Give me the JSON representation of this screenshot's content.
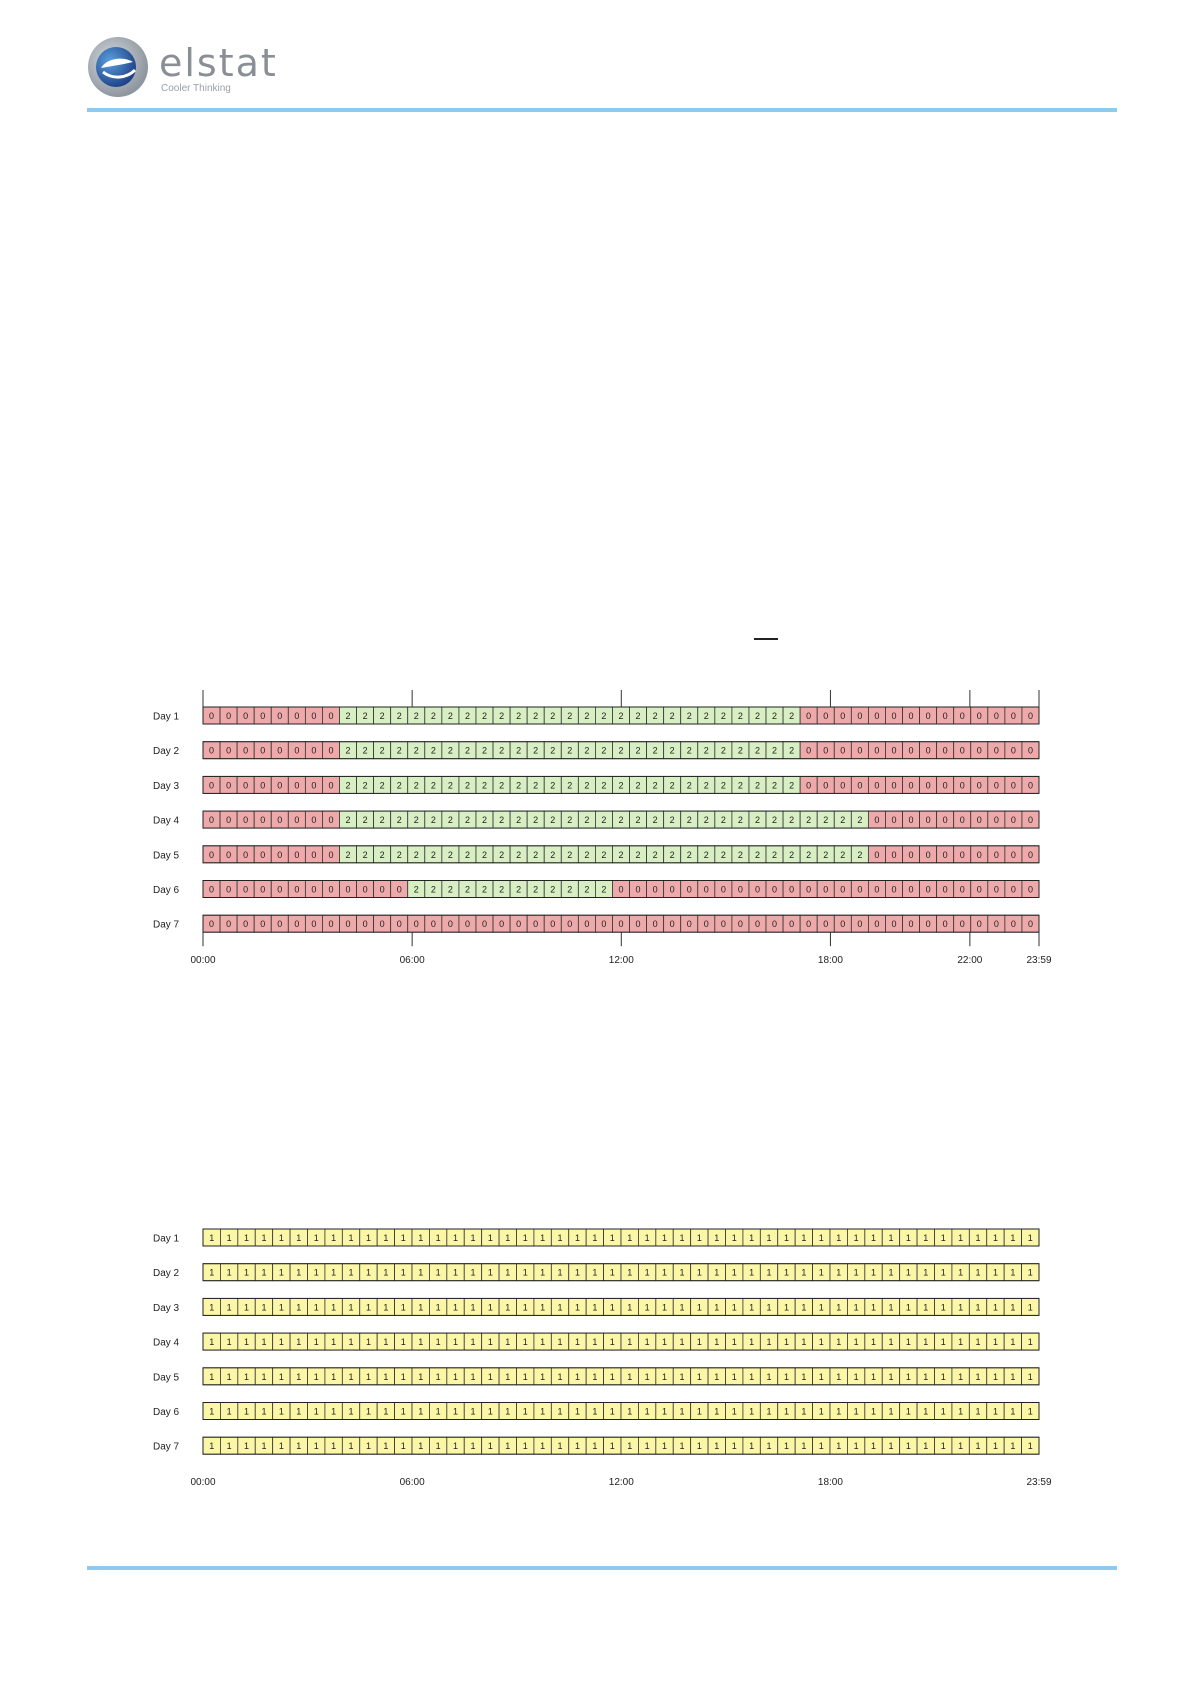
{
  "brand": {
    "name": "elstat",
    "tagline": "Cooler Thinking",
    "colors": {
      "rule": "#8ec9ef",
      "logo_outer": "#9aa3ad",
      "logo_inner": "#2d6fb6"
    }
  },
  "legend_colors": {
    "0": "#eeaaaa",
    "1": "#fbf7a6",
    "2": "#d8efc4"
  },
  "schedule_1": {
    "days": [
      {
        "label": "Day 1",
        "slots": [
          0,
          0,
          0,
          0,
          0,
          0,
          0,
          0,
          2,
          2,
          2,
          2,
          2,
          2,
          2,
          2,
          2,
          2,
          2,
          2,
          2,
          2,
          2,
          2,
          2,
          2,
          2,
          2,
          2,
          2,
          2,
          2,
          2,
          2,
          2,
          0,
          0,
          0,
          0,
          0,
          0,
          0,
          0,
          0,
          0,
          0,
          0,
          0,
          0
        ]
      },
      {
        "label": "Day 2",
        "slots": [
          0,
          0,
          0,
          0,
          0,
          0,
          0,
          0,
          2,
          2,
          2,
          2,
          2,
          2,
          2,
          2,
          2,
          2,
          2,
          2,
          2,
          2,
          2,
          2,
          2,
          2,
          2,
          2,
          2,
          2,
          2,
          2,
          2,
          2,
          2,
          0,
          0,
          0,
          0,
          0,
          0,
          0,
          0,
          0,
          0,
          0,
          0,
          0,
          0
        ]
      },
      {
        "label": "Day 3",
        "slots": [
          0,
          0,
          0,
          0,
          0,
          0,
          0,
          0,
          2,
          2,
          2,
          2,
          2,
          2,
          2,
          2,
          2,
          2,
          2,
          2,
          2,
          2,
          2,
          2,
          2,
          2,
          2,
          2,
          2,
          2,
          2,
          2,
          2,
          2,
          2,
          0,
          0,
          0,
          0,
          0,
          0,
          0,
          0,
          0,
          0,
          0,
          0,
          0,
          0
        ]
      },
      {
        "label": "Day 4",
        "slots": [
          0,
          0,
          0,
          0,
          0,
          0,
          0,
          0,
          2,
          2,
          2,
          2,
          2,
          2,
          2,
          2,
          2,
          2,
          2,
          2,
          2,
          2,
          2,
          2,
          2,
          2,
          2,
          2,
          2,
          2,
          2,
          2,
          2,
          2,
          2,
          2,
          2,
          2,
          2,
          0,
          0,
          0,
          0,
          0,
          0,
          0,
          0,
          0,
          0
        ]
      },
      {
        "label": "Day 5",
        "slots": [
          0,
          0,
          0,
          0,
          0,
          0,
          0,
          0,
          2,
          2,
          2,
          2,
          2,
          2,
          2,
          2,
          2,
          2,
          2,
          2,
          2,
          2,
          2,
          2,
          2,
          2,
          2,
          2,
          2,
          2,
          2,
          2,
          2,
          2,
          2,
          2,
          2,
          2,
          2,
          0,
          0,
          0,
          0,
          0,
          0,
          0,
          0,
          0,
          0
        ]
      },
      {
        "label": "Day 6",
        "slots": [
          0,
          0,
          0,
          0,
          0,
          0,
          0,
          0,
          0,
          0,
          0,
          0,
          2,
          2,
          2,
          2,
          2,
          2,
          2,
          2,
          2,
          2,
          2,
          2,
          0,
          0,
          0,
          0,
          0,
          0,
          0,
          0,
          0,
          0,
          0,
          0,
          0,
          0,
          0,
          0,
          0,
          0,
          0,
          0,
          0,
          0,
          0,
          0,
          0
        ]
      },
      {
        "label": "Day 7",
        "slots": [
          0,
          0,
          0,
          0,
          0,
          0,
          0,
          0,
          0,
          0,
          0,
          0,
          0,
          0,
          0,
          0,
          0,
          0,
          0,
          0,
          0,
          0,
          0,
          0,
          0,
          0,
          0,
          0,
          0,
          0,
          0,
          0,
          0,
          0,
          0,
          0,
          0,
          0,
          0,
          0,
          0,
          0,
          0,
          0,
          0,
          0,
          0,
          0,
          0
        ]
      }
    ],
    "time_labels": [
      "00:00",
      "06:00",
      "12:00",
      "18:00",
      "22:00",
      "23:59"
    ],
    "ticks_top": true
  },
  "schedule_2": {
    "days": [
      {
        "label": "Day 1",
        "slots": [
          1,
          1,
          1,
          1,
          1,
          1,
          1,
          1,
          1,
          1,
          1,
          1,
          1,
          1,
          1,
          1,
          1,
          1,
          1,
          1,
          1,
          1,
          1,
          1,
          1,
          1,
          1,
          1,
          1,
          1,
          1,
          1,
          1,
          1,
          1,
          1,
          1,
          1,
          1,
          1,
          1,
          1,
          1,
          1,
          1,
          1,
          1,
          1
        ]
      },
      {
        "label": "Day 2",
        "slots": [
          1,
          1,
          1,
          1,
          1,
          1,
          1,
          1,
          1,
          1,
          1,
          1,
          1,
          1,
          1,
          1,
          1,
          1,
          1,
          1,
          1,
          1,
          1,
          1,
          1,
          1,
          1,
          1,
          1,
          1,
          1,
          1,
          1,
          1,
          1,
          1,
          1,
          1,
          1,
          1,
          1,
          1,
          1,
          1,
          1,
          1,
          1,
          1
        ]
      },
      {
        "label": "Day 3",
        "slots": [
          1,
          1,
          1,
          1,
          1,
          1,
          1,
          1,
          1,
          1,
          1,
          1,
          1,
          1,
          1,
          1,
          1,
          1,
          1,
          1,
          1,
          1,
          1,
          1,
          1,
          1,
          1,
          1,
          1,
          1,
          1,
          1,
          1,
          1,
          1,
          1,
          1,
          1,
          1,
          1,
          1,
          1,
          1,
          1,
          1,
          1,
          1,
          1
        ]
      },
      {
        "label": "Day 4",
        "slots": [
          1,
          1,
          1,
          1,
          1,
          1,
          1,
          1,
          1,
          1,
          1,
          1,
          1,
          1,
          1,
          1,
          1,
          1,
          1,
          1,
          1,
          1,
          1,
          1,
          1,
          1,
          1,
          1,
          1,
          1,
          1,
          1,
          1,
          1,
          1,
          1,
          1,
          1,
          1,
          1,
          1,
          1,
          1,
          1,
          1,
          1,
          1,
          1
        ]
      },
      {
        "label": "Day 5",
        "slots": [
          1,
          1,
          1,
          1,
          1,
          1,
          1,
          1,
          1,
          1,
          1,
          1,
          1,
          1,
          1,
          1,
          1,
          1,
          1,
          1,
          1,
          1,
          1,
          1,
          1,
          1,
          1,
          1,
          1,
          1,
          1,
          1,
          1,
          1,
          1,
          1,
          1,
          1,
          1,
          1,
          1,
          1,
          1,
          1,
          1,
          1,
          1,
          1
        ]
      },
      {
        "label": "Day 6",
        "slots": [
          1,
          1,
          1,
          1,
          1,
          1,
          1,
          1,
          1,
          1,
          1,
          1,
          1,
          1,
          1,
          1,
          1,
          1,
          1,
          1,
          1,
          1,
          1,
          1,
          1,
          1,
          1,
          1,
          1,
          1,
          1,
          1,
          1,
          1,
          1,
          1,
          1,
          1,
          1,
          1,
          1,
          1,
          1,
          1,
          1,
          1,
          1,
          1
        ]
      },
      {
        "label": "Day 7",
        "slots": [
          1,
          1,
          1,
          1,
          1,
          1,
          1,
          1,
          1,
          1,
          1,
          1,
          1,
          1,
          1,
          1,
          1,
          1,
          1,
          1,
          1,
          1,
          1,
          1,
          1,
          1,
          1,
          1,
          1,
          1,
          1,
          1,
          1,
          1,
          1,
          1,
          1,
          1,
          1,
          1,
          1,
          1,
          1,
          1,
          1,
          1,
          1,
          1
        ]
      }
    ],
    "time_labels": [
      "00:00",
      "06:00",
      "12:00",
      "18:00",
      "23:59"
    ],
    "ticks_top": false
  }
}
